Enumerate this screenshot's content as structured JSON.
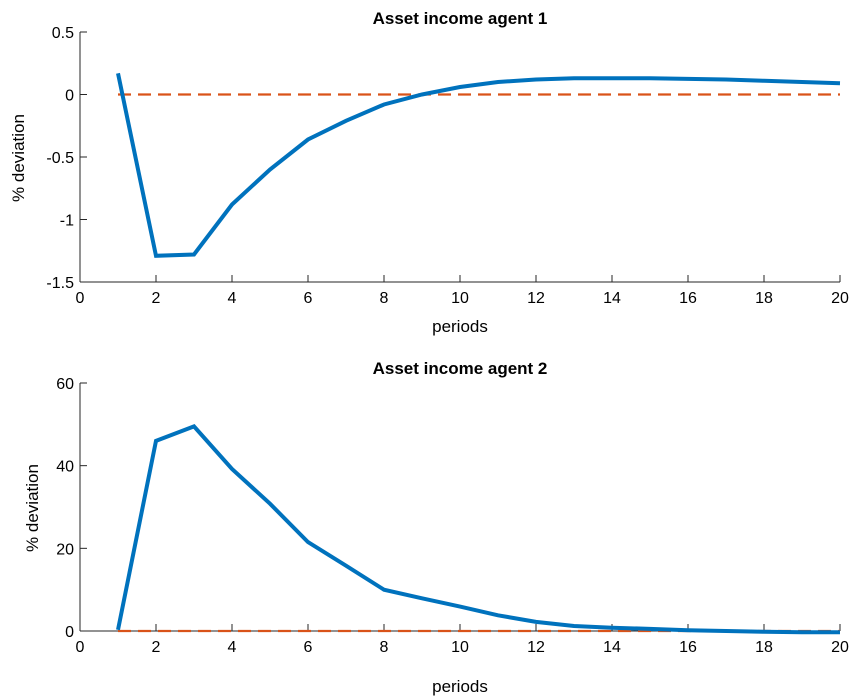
{
  "chart_data": [
    {
      "type": "line",
      "title": "Asset income agent 1",
      "xlabel": "periods",
      "ylabel": "% deviation",
      "xlim": [
        0,
        20
      ],
      "ylim": [
        -1.5,
        0.5
      ],
      "xticks": [
        "0",
        "2",
        "4",
        "6",
        "8",
        "10",
        "12",
        "14",
        "16",
        "18",
        "20"
      ],
      "yticks": [
        "-1.5",
        "-1",
        "-0.5",
        "0",
        "0.5"
      ],
      "grid": false,
      "series": [
        {
          "color": "#0072BD",
          "style": "solid",
          "x": [
            1,
            2,
            3,
            4,
            5,
            6,
            7,
            8,
            9,
            10,
            11,
            12,
            13,
            14,
            15,
            16,
            17,
            18,
            19,
            20
          ],
          "y": [
            0.17,
            -1.29,
            -1.28,
            -0.88,
            -0.6,
            -0.36,
            -0.21,
            -0.08,
            0.0,
            0.06,
            0.1,
            0.12,
            0.13,
            0.13,
            0.13,
            0.125,
            0.12,
            0.11,
            0.1,
            0.09
          ]
        },
        {
          "color": "#D95319",
          "style": "dashed",
          "x": [
            1,
            20
          ],
          "y": [
            0,
            0
          ]
        }
      ]
    },
    {
      "type": "line",
      "title": "Asset income agent 2",
      "xlabel": "periods",
      "ylabel": "% deviation",
      "xlim": [
        0,
        20
      ],
      "ylim": [
        0,
        60
      ],
      "xticks": [
        "0",
        "2",
        "4",
        "6",
        "8",
        "10",
        "12",
        "14",
        "16",
        "18",
        "20"
      ],
      "yticks": [
        "0",
        "20",
        "40",
        "60"
      ],
      "grid": false,
      "series": [
        {
          "color": "#0072BD",
          "style": "solid",
          "x": [
            1,
            2,
            3,
            4,
            5,
            6,
            7,
            8,
            9,
            10,
            11,
            12,
            13,
            14,
            15,
            16,
            17,
            18,
            19,
            20
          ],
          "y": [
            0.3,
            46,
            49.5,
            39.2,
            30.8,
            21.5,
            15.8,
            10.0,
            7.9,
            5.9,
            3.8,
            2.2,
            1.2,
            0.8,
            0.5,
            0.2,
            0.0,
            -0.2,
            -0.3,
            -0.3
          ]
        },
        {
          "color": "#D95319",
          "style": "dashed",
          "x": [
            1,
            20
          ],
          "y": [
            0,
            0
          ]
        }
      ]
    }
  ]
}
